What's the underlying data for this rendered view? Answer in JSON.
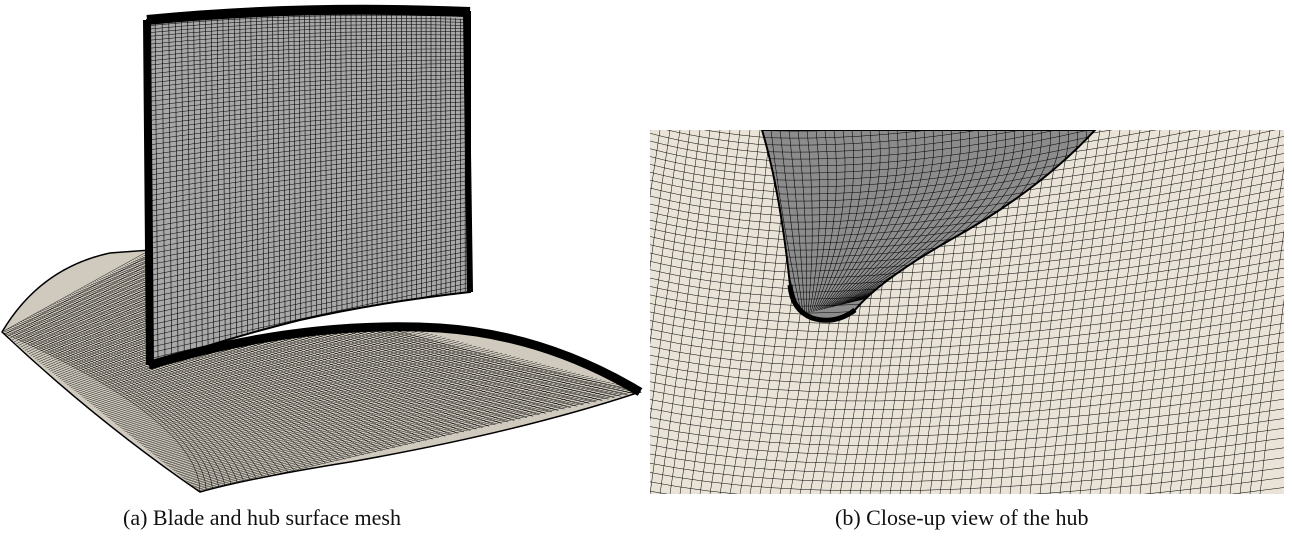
{
  "figure": {
    "panels": [
      {
        "id": "a",
        "caption": "(a) Blade and hub surface mesh"
      },
      {
        "id": "b",
        "caption": "(b) Close-up view of the hub"
      }
    ]
  },
  "colors": {
    "mesh_line": "#000000",
    "surface": "#eae4d8",
    "blade_surface": "#9a9a9a",
    "background": "#ffffff"
  }
}
